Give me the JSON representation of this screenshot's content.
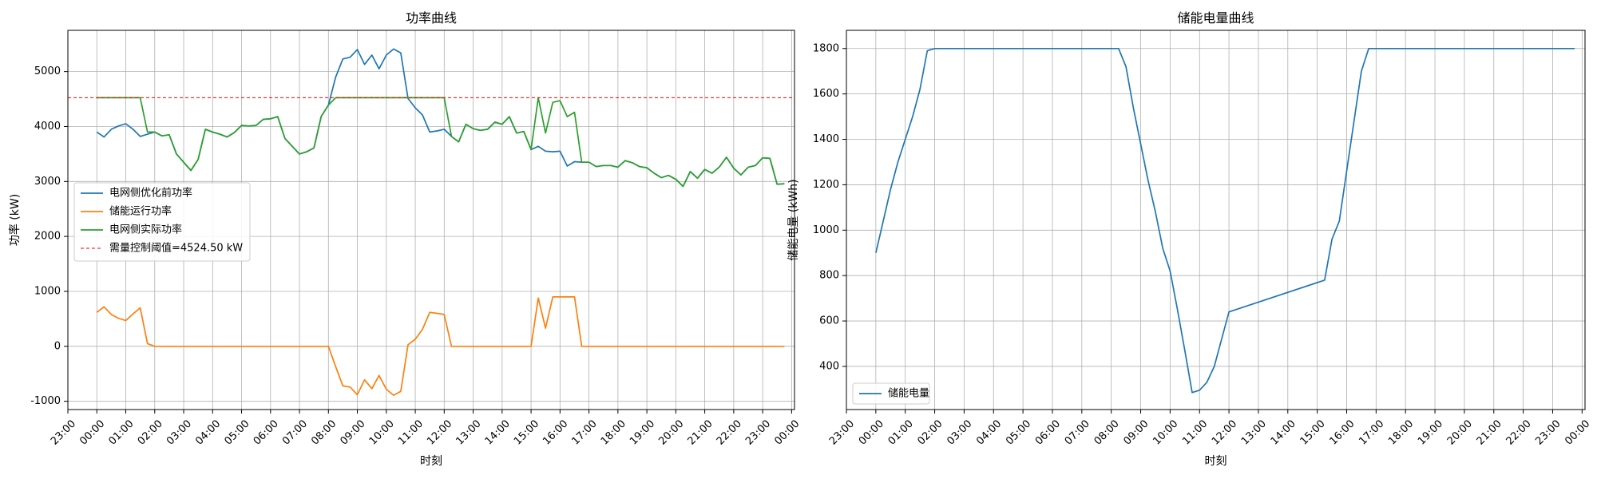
{
  "chart_data": [
    {
      "type": "line",
      "title": "功率曲线",
      "xlabel": "时刻",
      "ylabel": "功率 (kW)",
      "xlim": [
        -1,
        24.1
      ],
      "ylim": [
        -1150,
        5750
      ],
      "x_ticks": [
        "23:00",
        "00:00",
        "01:00",
        "02:00",
        "03:00",
        "04:00",
        "05:00",
        "06:00",
        "07:00",
        "08:00",
        "09:00",
        "10:00",
        "11:00",
        "12:00",
        "13:00",
        "14:00",
        "15:00",
        "16:00",
        "17:00",
        "18:00",
        "19:00",
        "20:00",
        "21:00",
        "22:00",
        "23:00",
        "00:00"
      ],
      "y_ticks": [
        -1000,
        0,
        1000,
        2000,
        3000,
        4000,
        5000
      ],
      "grid": true,
      "legend": "center-left",
      "x_hours": [
        0,
        0.25,
        0.5,
        0.75,
        1,
        1.25,
        1.5,
        1.75,
        2,
        2.25,
        2.5,
        2.75,
        3,
        3.25,
        3.5,
        3.75,
        4,
        4.25,
        4.5,
        4.75,
        5,
        5.25,
        5.5,
        5.75,
        6,
        6.25,
        6.5,
        6.75,
        7,
        7.25,
        7.5,
        7.75,
        8,
        8.25,
        8.5,
        8.75,
        9,
        9.25,
        9.5,
        9.75,
        10,
        10.25,
        10.5,
        10.75,
        11,
        11.25,
        11.5,
        11.75,
        12,
        12.25,
        12.5,
        12.75,
        13,
        13.25,
        13.5,
        13.75,
        14,
        14.25,
        14.5,
        14.75,
        15,
        15.25,
        15.5,
        15.75,
        16,
        16.25,
        16.5,
        16.75,
        17,
        17.25,
        17.5,
        17.75,
        18,
        18.25,
        18.5,
        18.75,
        19,
        19.25,
        19.5,
        19.75,
        20,
        20.25,
        20.5,
        20.75,
        21,
        21.25,
        21.5,
        21.75,
        22,
        22.25,
        22.5,
        22.75,
        23,
        23.25,
        23.5,
        23.75
      ],
      "series": [
        {
          "name": "电网侧优化前功率",
          "color": "#1f77b4",
          "values": [
            3900,
            3810,
            3950,
            4010,
            4050,
            3950,
            3820,
            3860,
            3900,
            3830,
            3850,
            3500,
            3350,
            3200,
            3400,
            3950,
            3900,
            3860,
            3810,
            3890,
            4020,
            4010,
            4020,
            4130,
            4140,
            4180,
            3780,
            3640,
            3500,
            3540,
            3610,
            4180,
            4390,
            4900,
            5230,
            5260,
            5400,
            5130,
            5300,
            5050,
            5300,
            5410,
            5340,
            4510,
            4340,
            4210,
            3900,
            3920,
            3950,
            3820,
            3720,
            4040,
            3960,
            3930,
            3950,
            4080,
            4040,
            4180,
            3880,
            3910,
            3580,
            3640,
            3550,
            3540,
            3550,
            3280,
            3360,
            3350,
            3350,
            3270,
            3290,
            3290,
            3260,
            3380,
            3340,
            3270,
            3250,
            3150,
            3070,
            3110,
            3040,
            2910,
            3180,
            3060,
            3220,
            3150,
            3260,
            3440,
            3240,
            3120,
            3260,
            3290,
            3430,
            3420,
            2950,
            2960
          ]
        },
        {
          "name": "储能运行功率",
          "color": "#ff7f0e",
          "values": [
            620,
            720,
            580,
            510,
            470,
            590,
            700,
            50,
            0,
            0,
            0,
            0,
            0,
            0,
            0,
            0,
            0,
            0,
            0,
            0,
            0,
            0,
            0,
            0,
            0,
            0,
            0,
            0,
            0,
            0,
            0,
            0,
            0,
            -370,
            -720,
            -740,
            -880,
            -610,
            -770,
            -530,
            -780,
            -890,
            -820,
            30,
            130,
            310,
            620,
            600,
            580,
            0,
            0,
            0,
            0,
            0,
            0,
            0,
            0,
            0,
            0,
            0,
            0,
            880,
            330,
            900,
            900,
            900,
            900,
            0,
            0,
            0,
            0,
            0,
            0,
            0,
            0,
            0,
            0,
            0,
            0,
            0,
            0,
            0,
            0,
            0,
            0,
            0,
            0,
            0,
            0,
            0,
            0,
            0,
            0,
            0,
            0,
            0
          ]
        },
        {
          "name": "电网侧实际功率",
          "color": "#2ca02c",
          "values": [
            4524,
            4524,
            4524,
            4524,
            4524,
            4524,
            4524,
            3900,
            3900,
            3830,
            3850,
            3500,
            3350,
            3200,
            3400,
            3950,
            3900,
            3860,
            3810,
            3890,
            4020,
            4010,
            4020,
            4130,
            4140,
            4180,
            3780,
            3640,
            3500,
            3540,
            3610,
            4180,
            4390,
            4524,
            4524,
            4524,
            4524,
            4524,
            4524,
            4524,
            4524,
            4524,
            4524,
            4524,
            4524,
            4524,
            4524,
            4524,
            4524,
            3820,
            3720,
            4040,
            3960,
            3930,
            3950,
            4080,
            4040,
            4180,
            3880,
            3910,
            3580,
            4524,
            3880,
            4440,
            4470,
            4180,
            4260,
            3350,
            3350,
            3270,
            3290,
            3290,
            3260,
            3380,
            3340,
            3270,
            3250,
            3150,
            3070,
            3110,
            3040,
            2910,
            3180,
            3060,
            3220,
            3150,
            3260,
            3440,
            3240,
            3120,
            3260,
            3290,
            3430,
            3420,
            2950,
            2960
          ]
        },
        {
          "name": "需量控制阈值=4524.50 kW",
          "color": "#ff0000",
          "style": "dashed",
          "constant": 4524.5
        }
      ]
    },
    {
      "type": "line",
      "title": "储能电量曲线",
      "xlabel": "时刻",
      "ylabel": "储能电量 (kWh)",
      "xlim": [
        -1,
        24.1
      ],
      "ylim": [
        210,
        1880
      ],
      "x_ticks": [
        "23:00",
        "00:00",
        "01:00",
        "02:00",
        "03:00",
        "04:00",
        "05:00",
        "06:00",
        "07:00",
        "08:00",
        "09:00",
        "10:00",
        "11:00",
        "12:00",
        "13:00",
        "14:00",
        "15:00",
        "16:00",
        "17:00",
        "18:00",
        "19:00",
        "20:00",
        "21:00",
        "22:00",
        "23:00",
        "00:00"
      ],
      "y_ticks": [
        400,
        600,
        800,
        1000,
        1200,
        1400,
        1600,
        1800
      ],
      "grid": true,
      "legend": "lower-left",
      "series": [
        {
          "name": "储能电量",
          "color": "#1f77b4",
          "x": [
            0,
            0.25,
            0.5,
            0.75,
            1,
            1.25,
            1.5,
            1.75,
            2,
            8.25,
            8.5,
            8.75,
            9,
            9.25,
            9.5,
            9.75,
            10,
            10.25,
            10.5,
            10.75,
            11,
            11.25,
            11.5,
            11.75,
            12,
            15.25,
            15.5,
            15.75,
            16,
            16.25,
            16.5,
            16.75,
            23.75
          ],
          "values": [
            900,
            1040,
            1180,
            1300,
            1400,
            1500,
            1620,
            1790,
            1800,
            1800,
            1720,
            1540,
            1380,
            1220,
            1080,
            920,
            820,
            650,
            470,
            285,
            295,
            330,
            400,
            520,
            640,
            780,
            960,
            1040,
            1260,
            1480,
            1700,
            1800,
            1800
          ]
        }
      ]
    }
  ]
}
